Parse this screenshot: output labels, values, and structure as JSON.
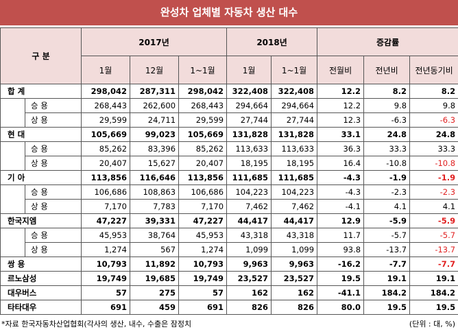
{
  "header": {
    "title": "완성차 업체별 자동차 생산 대수"
  },
  "table": {
    "header": {
      "category": "구 분",
      "groups": [
        "2017년",
        "2018년",
        "증감률"
      ],
      "columns": [
        "1월",
        "12월",
        "1~1월",
        "1월",
        "1~1월",
        "전월비",
        "전년비",
        "전년동기비"
      ]
    },
    "companies": [
      {
        "name": "합 계",
        "cells": [
          "298,042",
          "287,311",
          "298,042",
          "322,408",
          "322,408",
          "12.2",
          "8.2",
          "8.2"
        ],
        "children": [
          {
            "name": "승 용",
            "cells": [
              "268,443",
              "262,600",
              "268,443",
              "294,664",
              "294,664",
              "12.2",
              "9.8",
              "9.8"
            ]
          },
          {
            "name": "상 용",
            "cells": [
              "29,599",
              "24,711",
              "29,599",
              "27,744",
              "27,744",
              "12.3",
              "-6.3",
              "-6.3"
            ]
          }
        ]
      },
      {
        "name": "현 대",
        "cells": [
          "105,669",
          "99,023",
          "105,669",
          "131,828",
          "131,828",
          "33.1",
          "24.8",
          "24.8"
        ],
        "children": [
          {
            "name": "승 용",
            "cells": [
              "85,262",
              "83,396",
              "85,262",
              "113,633",
              "113,633",
              "36.3",
              "33.3",
              "33.3"
            ]
          },
          {
            "name": "상 용",
            "cells": [
              "20,407",
              "15,627",
              "20,407",
              "18,195",
              "18,195",
              "16.4",
              "-10.8",
              "-10.8"
            ]
          }
        ]
      },
      {
        "name": "기 아",
        "cells": [
          "113,856",
          "116,646",
          "113,856",
          "111,685",
          "111,685",
          "-4.3",
          "-1.9",
          "-1.9"
        ],
        "children": [
          {
            "name": "승 용",
            "cells": [
              "106,686",
              "108,863",
              "106,686",
              "104,223",
              "104,223",
              "-4.3",
              "-2.3",
              "-2.3"
            ]
          },
          {
            "name": "상 용",
            "cells": [
              "7,170",
              "7,783",
              "7,170",
              "7,462",
              "7,462",
              "-4.1",
              "4.1",
              "4.1"
            ]
          }
        ]
      },
      {
        "name": "한국지엠",
        "cells": [
          "47,227",
          "39,331",
          "47,227",
          "44,417",
          "44,417",
          "12.9",
          "-5.9",
          "-5.9"
        ],
        "children": [
          {
            "name": "승 용",
            "cells": [
              "45,953",
              "38,764",
              "45,953",
              "43,318",
              "43,318",
              "11.7",
              "-5.7",
              "-5.7"
            ]
          },
          {
            "name": "상 용",
            "cells": [
              "1,274",
              "567",
              "1,274",
              "1,099",
              "1,099",
              "93.8",
              "-13.7",
              "-13.7"
            ]
          }
        ]
      },
      {
        "name": "쌍 용",
        "cells": [
          "10,793",
          "11,892",
          "10,793",
          "9,963",
          "9,963",
          "-16.2",
          "-7.7",
          "-7.7"
        ],
        "children": []
      },
      {
        "name": "르노삼성",
        "cells": [
          "19,749",
          "19,685",
          "19,749",
          "23,527",
          "23,527",
          "19.5",
          "19.1",
          "19.1"
        ],
        "children": []
      },
      {
        "name": "대우버스",
        "cells": [
          "57",
          "275",
          "57",
          "162",
          "162",
          "-41.1",
          "184.2",
          "184.2"
        ],
        "children": []
      },
      {
        "name": "타타대우",
        "cells": [
          "691",
          "459",
          "691",
          "826",
          "826",
          "80.0",
          "19.5",
          "19.5"
        ],
        "children": []
      }
    ]
  },
  "footer": {
    "source": "*자료 한국자동차산업협회(각사의 생산, 내수, 수출은 잠정치",
    "unit": "(단위 : 대, %)"
  }
}
